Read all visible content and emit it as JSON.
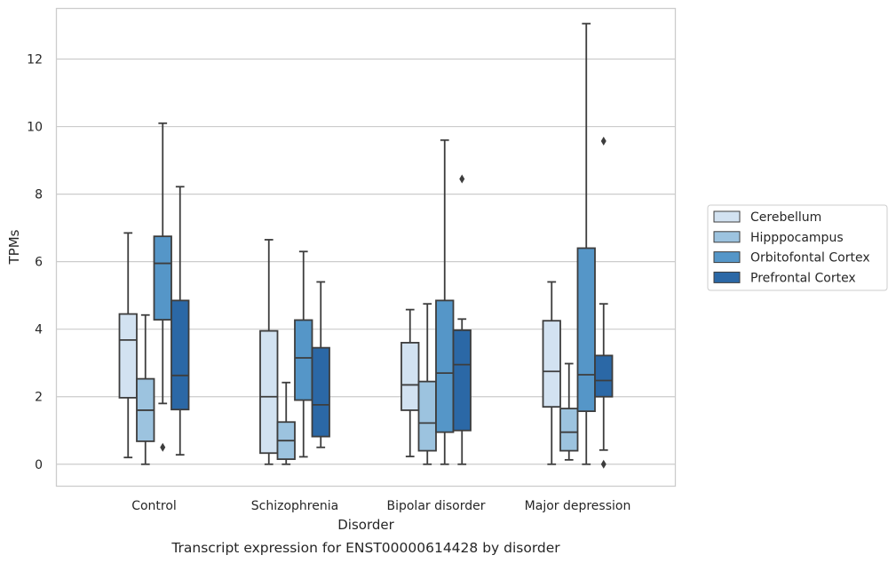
{
  "caption": "Transcript expression for ENST00000614428 by disorder",
  "chart_data": {
    "type": "box",
    "xlabel": "Disorder",
    "ylabel": "TPMs",
    "ylim": [
      -0.65,
      13.5
    ],
    "yticks": [
      0,
      2,
      4,
      6,
      8,
      10,
      12
    ],
    "grid": "horizontal",
    "legend_position": "right",
    "categories": [
      "Control",
      "Schizophrenia",
      "Bipolar disorder",
      "Major depression"
    ],
    "series": [
      {
        "name": "Cerebellum",
        "color": "#d2e2f1",
        "boxes": [
          {
            "whislo": 0.2,
            "q1": 1.97,
            "med": 3.68,
            "q3": 4.45,
            "whishi": 6.85,
            "fliers": []
          },
          {
            "whislo": 0.0,
            "q1": 0.33,
            "med": 2.0,
            "q3": 3.95,
            "whishi": 6.65,
            "fliers": []
          },
          {
            "whislo": 0.23,
            "q1": 1.6,
            "med": 2.35,
            "q3": 3.6,
            "whishi": 4.58,
            "fliers": []
          },
          {
            "whislo": 0.0,
            "q1": 1.7,
            "med": 2.75,
            "q3": 4.25,
            "whishi": 5.4,
            "fliers": []
          }
        ]
      },
      {
        "name": "Hipppocampus",
        "color": "#9cc3df",
        "boxes": [
          {
            "whislo": 0.0,
            "q1": 0.68,
            "med": 1.6,
            "q3": 2.53,
            "whishi": 4.42,
            "fliers": []
          },
          {
            "whislo": 0.0,
            "q1": 0.15,
            "med": 0.7,
            "q3": 1.25,
            "whishi": 2.42,
            "fliers": []
          },
          {
            "whislo": 0.0,
            "q1": 0.4,
            "med": 1.22,
            "q3": 2.45,
            "whishi": 4.75,
            "fliers": []
          },
          {
            "whislo": 0.13,
            "q1": 0.4,
            "med": 0.95,
            "q3": 1.65,
            "whishi": 2.98,
            "fliers": []
          }
        ]
      },
      {
        "name": "Orbitofontal Cortex",
        "color": "#5596c8",
        "boxes": [
          {
            "whislo": 1.8,
            "q1": 4.28,
            "med": 5.95,
            "q3": 6.75,
            "whishi": 10.1,
            "fliers": [
              0.5
            ]
          },
          {
            "whislo": 0.22,
            "q1": 1.9,
            "med": 3.15,
            "q3": 4.27,
            "whishi": 6.3,
            "fliers": []
          },
          {
            "whislo": 0.0,
            "q1": 0.95,
            "med": 2.7,
            "q3": 4.85,
            "whishi": 9.6,
            "fliers": []
          },
          {
            "whislo": 0.0,
            "q1": 1.57,
            "med": 2.65,
            "q3": 6.4,
            "whishi": 13.05,
            "fliers": []
          }
        ]
      },
      {
        "name": "Prefrontal Cortex",
        "color": "#2b68a6",
        "boxes": [
          {
            "whislo": 0.28,
            "q1": 1.62,
            "med": 2.63,
            "q3": 4.85,
            "whishi": 8.22,
            "fliers": []
          },
          {
            "whislo": 0.5,
            "q1": 0.82,
            "med": 1.76,
            "q3": 3.45,
            "whishi": 5.4,
            "fliers": []
          },
          {
            "whislo": 0.0,
            "q1": 1.0,
            "med": 2.95,
            "q3": 3.97,
            "whishi": 4.3,
            "fliers": [
              8.45
            ]
          },
          {
            "whislo": 0.42,
            "q1": 2.0,
            "med": 2.48,
            "q3": 3.22,
            "whishi": 4.75,
            "fliers": [
              9.57,
              0.0
            ]
          }
        ]
      }
    ]
  }
}
